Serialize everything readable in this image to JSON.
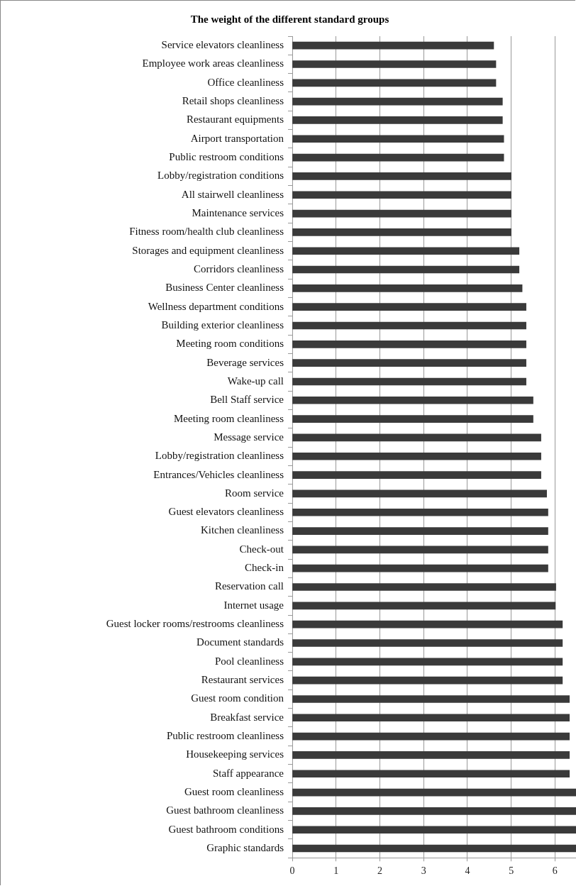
{
  "chart_data": {
    "type": "bar",
    "orientation": "horizontal",
    "title": "The weight of the different standard groups",
    "categories": [
      "Service elevators cleanliness",
      "Employee work areas cleanliness",
      "Office cleanliness",
      "Retail shops cleanliness",
      "Restaurant equipments",
      "Airport transportation",
      "Public restroom conditions",
      "Lobby/registration conditions",
      "All stairwell cleanliness",
      "Maintenance services",
      "Fitness room/health club cleanliness",
      "Storages and equipment cleanliness",
      "Corridors cleanliness",
      "Business Center cleanliness",
      "Wellness department conditions",
      "Building exterior cleanliness",
      "Meeting room conditions",
      "Beverage services",
      "Wake-up call",
      "Bell Staff service",
      "Meeting room cleanliness",
      "Message service",
      "Lobby/registration cleanliness",
      "Entrances/Vehicles cleanliness",
      "Room service",
      "Guest elevators cleanliness",
      "Kitchen cleanliness",
      "Check-out",
      "Check-in",
      "Reservation call",
      "Internet usage",
      "Guest locker rooms/restrooms cleanliness",
      "Document standards",
      "Pool cleanliness",
      "Restaurant services",
      "Guest room condition",
      "Breakfast service",
      "Public restroom cleanliness",
      "Housekeeping services",
      "Staff appearance",
      "Guest room cleanliness",
      "Guest bathroom cleanliness",
      "Guest bathroom conditions",
      "Graphic standards"
    ],
    "values": [
      4.6,
      4.65,
      4.65,
      4.8,
      4.8,
      4.83,
      4.83,
      5.0,
      5.0,
      5.0,
      5.0,
      5.18,
      5.18,
      5.25,
      5.34,
      5.34,
      5.34,
      5.34,
      5.34,
      5.5,
      5.5,
      5.68,
      5.68,
      5.68,
      5.81,
      5.84,
      5.84,
      5.84,
      5.84,
      6.02,
      6.01,
      6.17,
      6.17,
      6.17,
      6.17,
      6.33,
      6.33,
      6.33,
      6.33,
      6.33,
      6.48,
      6.48,
      6.48,
      6.48
    ],
    "color": "#3a3a3a",
    "xlim": [
      0,
      6.48
    ],
    "xticks": [
      0,
      1,
      2,
      3,
      4,
      5,
      6
    ],
    "grid": "x",
    "legend": false
  }
}
